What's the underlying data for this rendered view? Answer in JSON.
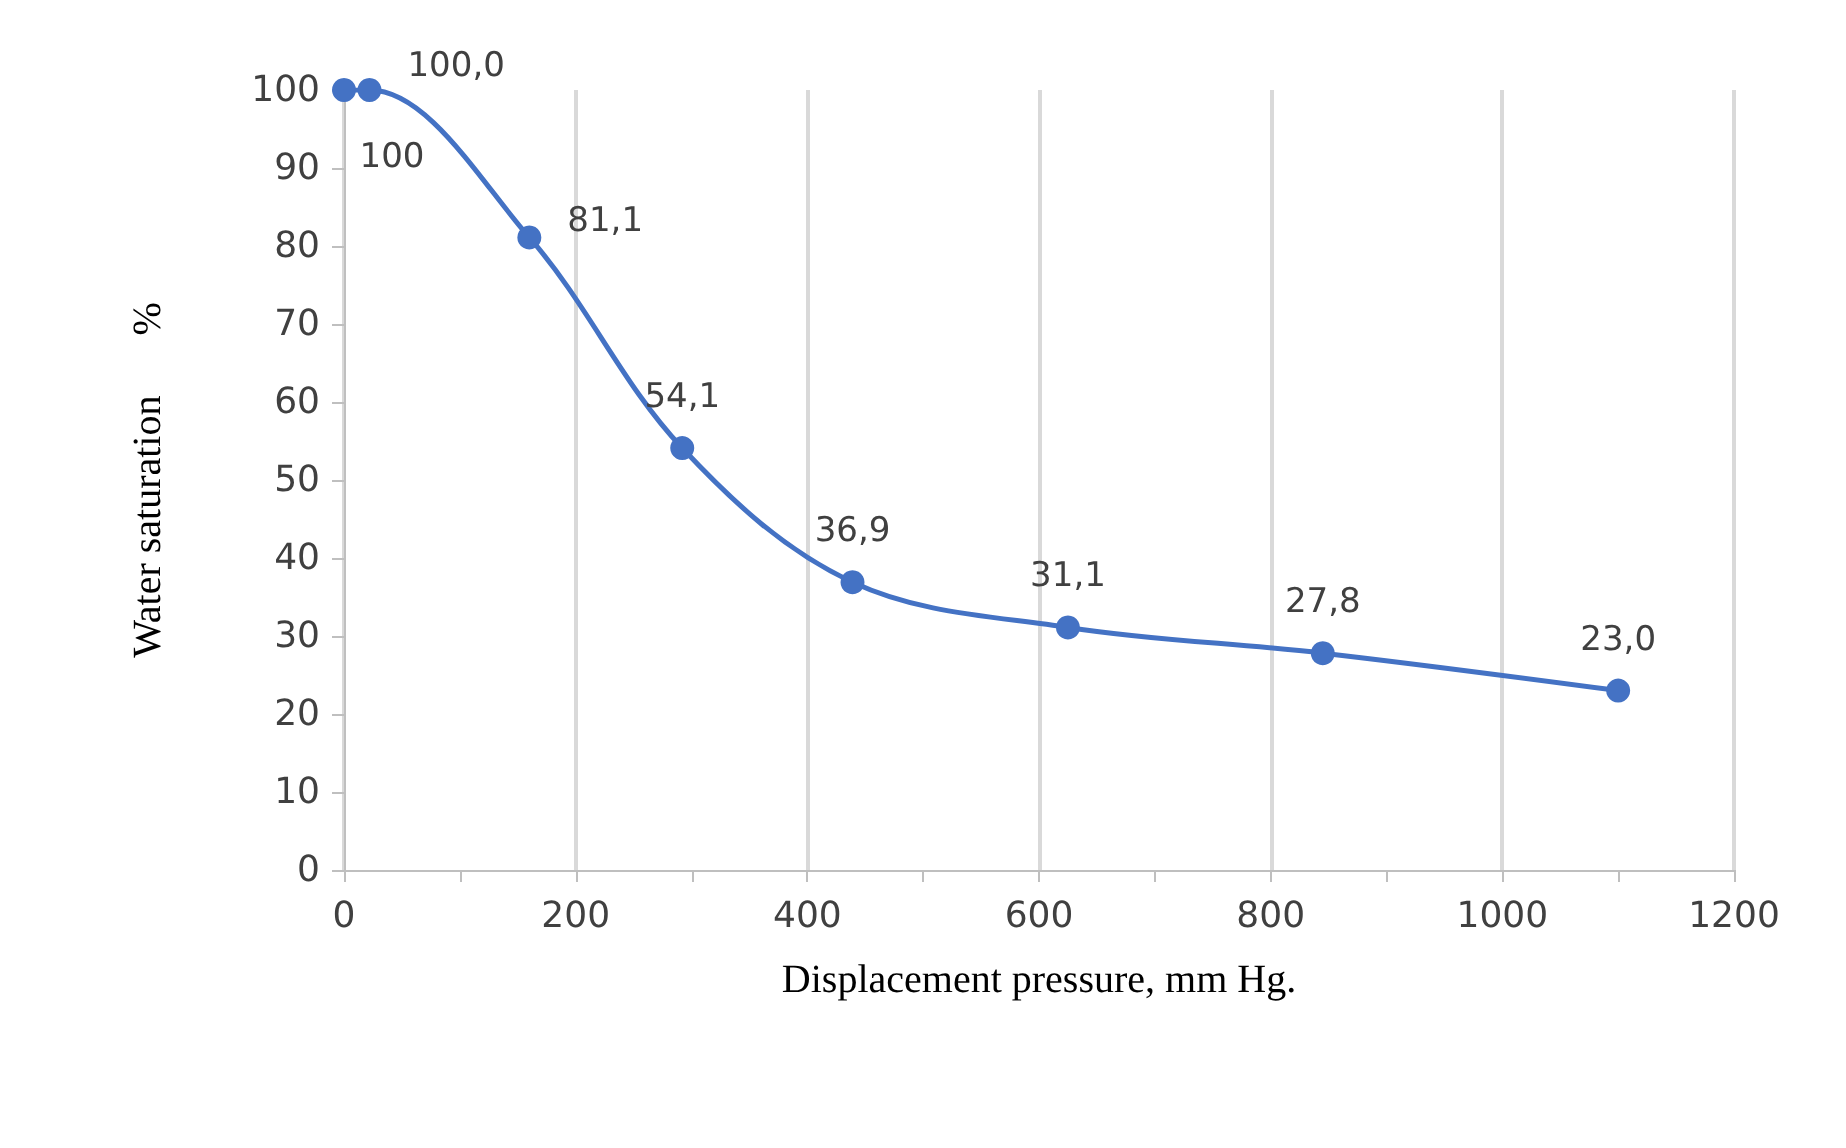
{
  "chart_data": {
    "type": "line",
    "xlabel": "Displacement pressure, mm Hg.",
    "ylabel": "Water saturation      %",
    "x": [
      0,
      22,
      160,
      292,
      439,
      625,
      845,
      1100
    ],
    "series": [
      {
        "color": "#4472c4",
        "values": [
          100,
          100,
          81.1,
          54.1,
          36.9,
          31.1,
          27.8,
          23.0
        ],
        "value_labels": [
          "100",
          "100,0",
          "81,1",
          "54,1",
          "36,9",
          "31,1",
          "27,8",
          "23,0"
        ]
      }
    ],
    "xlim": [
      0,
      1200
    ],
    "xticks": [
      0,
      200,
      400,
      600,
      800,
      1000,
      1200
    ],
    "ylim": [
      0,
      100
    ],
    "yticks": [
      0,
      10,
      20,
      30,
      40,
      50,
      60,
      70,
      80,
      90,
      100
    ],
    "grid": true,
    "marker": "circle",
    "line_style": "solid"
  }
}
